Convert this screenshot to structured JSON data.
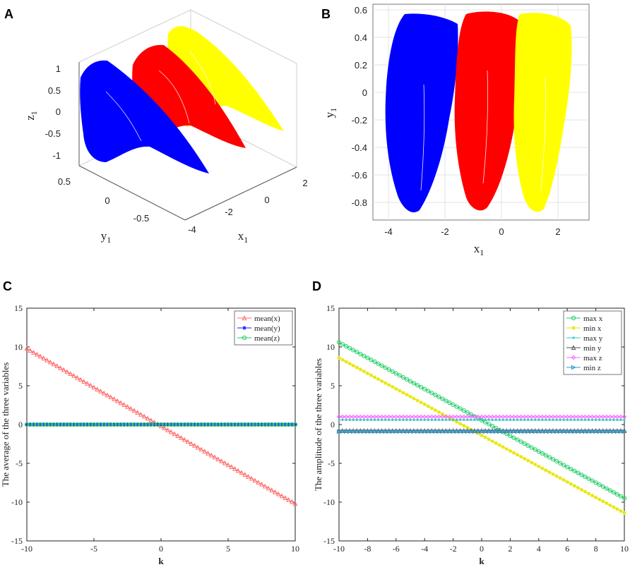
{
  "panels": {
    "A": {
      "letter": "A",
      "xlabel": "x",
      "xlabel_sub": "1",
      "ylabel": "y",
      "ylabel_sub": "1",
      "zlabel": "z",
      "zlabel_sub": "1",
      "z_ticks": [
        "1",
        "0.5",
        "0",
        "-0.5",
        "-1"
      ],
      "y_ticks": [
        "0.5",
        "0",
        "-0.5"
      ],
      "x_ticks": [
        "2",
        "0",
        "-2",
        "-4"
      ],
      "colors": [
        "#0000ff",
        "#ff0000",
        "#ffff00"
      ]
    },
    "B": {
      "letter": "B",
      "xlabel": "x",
      "xlabel_sub": "1",
      "ylabel": "y",
      "ylabel_sub": "1",
      "y_ticks": [
        "0.6",
        "0.4",
        "0.2",
        "0",
        "-0.2",
        "-0.4",
        "-0.6",
        "-0.8"
      ],
      "x_ticks": [
        "-4",
        "-2",
        "0",
        "2"
      ],
      "colors": [
        "#0000ff",
        "#ff0000",
        "#ffff00"
      ]
    },
    "C": {
      "letter": "C"
    },
    "D": {
      "letter": "D"
    }
  },
  "chart_data": [
    {
      "id": "C",
      "type": "line",
      "xlabel": "k",
      "ylabel": "The average of the three variables",
      "xlim": [
        -10,
        10
      ],
      "ylim": [
        -15,
        15
      ],
      "x_ticks": [
        -10,
        -5,
        0,
        5,
        10
      ],
      "y_ticks": [
        15,
        10,
        5,
        0,
        -5,
        -10,
        -15
      ],
      "legend_position": "top-right",
      "series": [
        {
          "name": "mean(x)",
          "color": "#ff6b6b",
          "marker": "triangle",
          "x": [
            -10,
            10
          ],
          "y": [
            9.8,
            -10.2
          ]
        },
        {
          "name": "mean(y)",
          "color": "#1a1aff",
          "marker": "star",
          "x": [
            -10,
            10
          ],
          "y": [
            0,
            0
          ]
        },
        {
          "name": "mean(z)",
          "color": "#22cc66",
          "marker": "circle",
          "x": [
            -10,
            10
          ],
          "y": [
            0,
            0
          ]
        }
      ]
    },
    {
      "id": "D",
      "type": "line",
      "xlabel": "k",
      "ylabel": "The amplitude of the three variables",
      "xlim": [
        -10,
        10
      ],
      "ylim": [
        -15,
        15
      ],
      "x_ticks": [
        -10,
        -8,
        -6,
        -4,
        -2,
        0,
        2,
        4,
        6,
        8,
        10
      ],
      "y_ticks": [
        15,
        10,
        5,
        0,
        -5,
        -10,
        -15
      ],
      "legend_position": "top-right",
      "series": [
        {
          "name": "max x",
          "color": "#22cc66",
          "marker": "circle",
          "x": [
            -10,
            10
          ],
          "y": [
            10.6,
            -9.5
          ]
        },
        {
          "name": "min x",
          "color": "#e6e600",
          "marker": "star",
          "x": [
            -10,
            10
          ],
          "y": [
            8.6,
            -11.4
          ]
        },
        {
          "name": "max y",
          "color": "#33cccc",
          "marker": "dot",
          "x": [
            -10,
            10
          ],
          "y": [
            0.6,
            0.6
          ]
        },
        {
          "name": "min y",
          "color": "#555555",
          "marker": "triangle",
          "x": [
            -10,
            10
          ],
          "y": [
            -0.8,
            -0.8
          ]
        },
        {
          "name": "max z",
          "color": "#ff66ff",
          "marker": "diamond",
          "x": [
            -10,
            10
          ],
          "y": [
            1.0,
            1.0
          ]
        },
        {
          "name": "min z",
          "color": "#3399cc",
          "marker": "triangle-right",
          "x": [
            -10,
            10
          ],
          "y": [
            -0.9,
            -0.9
          ]
        }
      ]
    }
  ]
}
